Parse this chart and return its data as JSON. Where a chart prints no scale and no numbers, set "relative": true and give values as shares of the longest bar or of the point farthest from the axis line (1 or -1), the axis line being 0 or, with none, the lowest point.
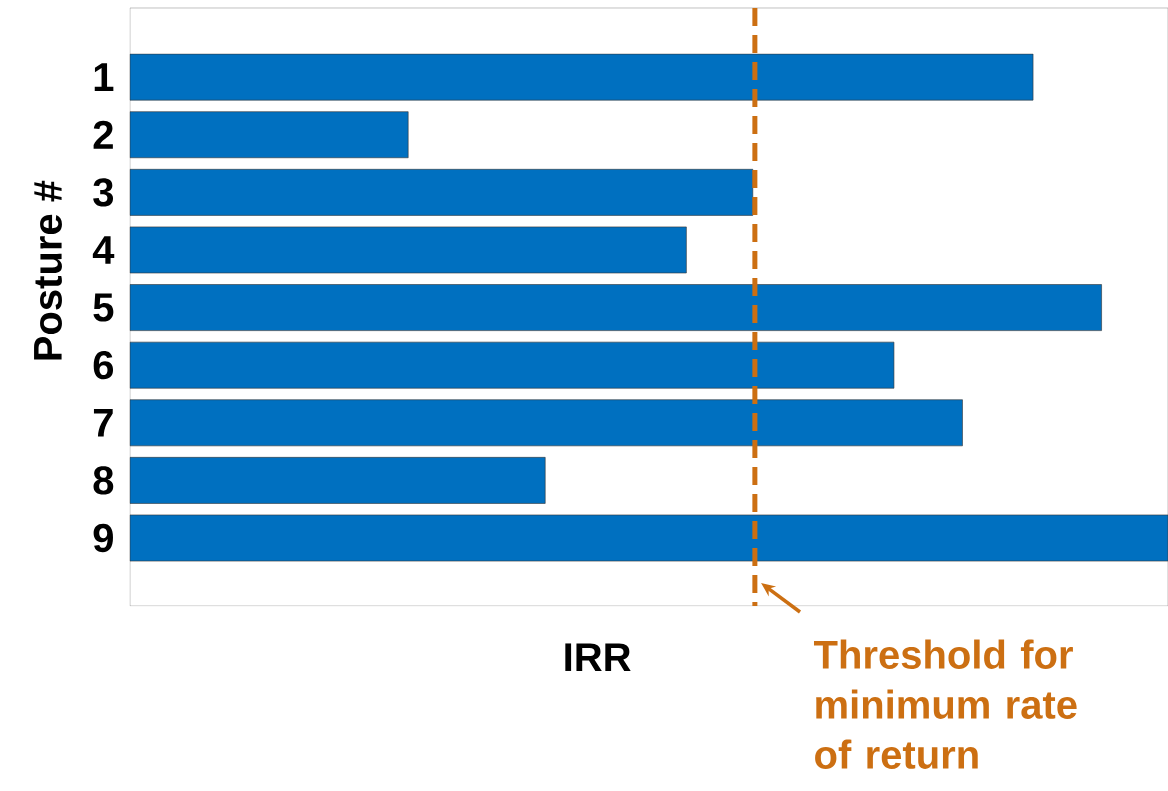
{
  "chart_data": {
    "type": "bar",
    "orientation": "horizontal",
    "relative": true,
    "xlabel": "IRR",
    "ylabel": "Posture #",
    "categories": [
      "1",
      "2",
      "3",
      "4",
      "5",
      "6",
      "7",
      "8",
      "9"
    ],
    "values": [
      0.87,
      0.268,
      0.6,
      0.536,
      0.936,
      0.736,
      0.802,
      0.4,
      1
    ],
    "color": "#0070c0",
    "ref_lines": [
      {
        "axis": "x",
        "value": 0.602,
        "label": "Threshold for minimum rate of return",
        "color": "#cc6f12",
        "line_style": "dashed"
      }
    ]
  }
}
